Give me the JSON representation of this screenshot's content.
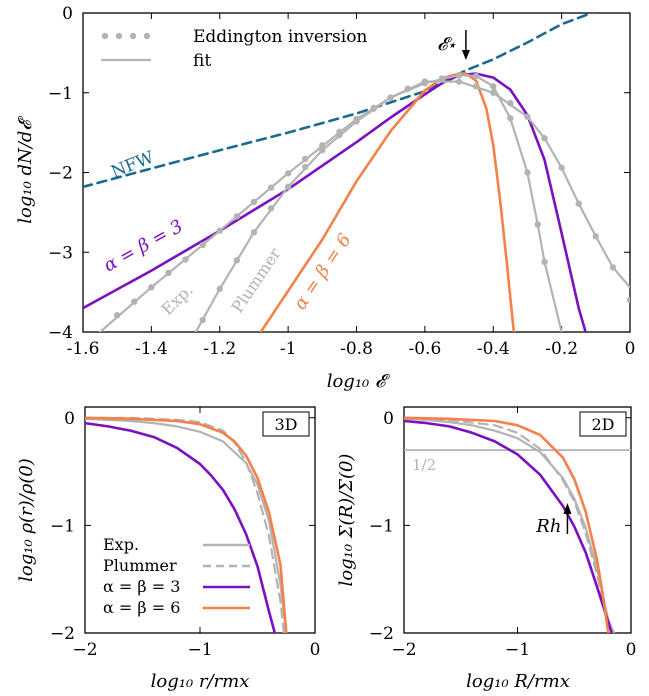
{
  "chart_data": [
    {
      "type": "line",
      "xlabel": "log₁₀ 𝓔",
      "ylabel": "log₁₀ dN/d𝓔",
      "xlim": [
        -1.6,
        0
      ],
      "ylim": [
        -4,
        0
      ],
      "xticks": [
        "-1.6",
        "-1.4",
        "-1.2",
        "-1",
        "-0.8",
        "-0.6",
        "-0.4",
        "-0.2",
        "0"
      ],
      "yticks": [
        "0",
        "−1",
        "−2",
        "−3",
        "−4"
      ],
      "legend": {
        "position": "top-left",
        "entries": [
          "Eddington inversion",
          "fit"
        ]
      },
      "colors": {
        "nfw": "#1a6b8f",
        "ab3": "#7a10c0",
        "ab6": "#f4814a",
        "gray": "#b3b3b3"
      },
      "annotations": {
        "nfw": "NFW",
        "ab3": "α = β = 3",
        "ab6": "α = β = 6",
        "exp": "Exp.",
        "plummer": "Plummer",
        "estar": "𝓔⋆"
      },
      "estar_x": -0.48,
      "series": [
        {
          "name": "NFW",
          "style": "dashed",
          "color": "#1a6b8f",
          "x": [
            -1.6,
            -1.4,
            -1.2,
            -1.0,
            -0.8,
            -0.6,
            -0.48,
            -0.4,
            -0.3,
            -0.2,
            -0.1
          ],
          "y": [
            -2.18,
            -1.95,
            -1.72,
            -1.5,
            -1.26,
            -0.98,
            -0.72,
            -0.58,
            -0.37,
            -0.14,
            0.02
          ]
        },
        {
          "name": "α = β = 3",
          "color": "#7a10c0",
          "x": [
            -1.6,
            -1.4,
            -1.2,
            -1.0,
            -0.8,
            -0.7,
            -0.6,
            -0.55,
            -0.5,
            -0.45,
            -0.4,
            -0.35,
            -0.3,
            -0.25,
            -0.2,
            -0.15,
            -0.13
          ],
          "y": [
            -3.7,
            -3.23,
            -2.73,
            -2.21,
            -1.62,
            -1.31,
            -1.02,
            -0.88,
            -0.78,
            -0.76,
            -0.81,
            -0.96,
            -1.28,
            -1.84,
            -2.76,
            -3.7,
            -4.0
          ]
        },
        {
          "name": "α = β = 6",
          "color": "#f4814a",
          "x": [
            -1.08,
            -0.9,
            -0.8,
            -0.7,
            -0.6,
            -0.55,
            -0.5,
            -0.48,
            -0.45,
            -0.42,
            -0.4,
            -0.38,
            -0.36,
            -0.34
          ],
          "y": [
            -4.0,
            -2.84,
            -2.11,
            -1.48,
            -0.97,
            -0.82,
            -0.76,
            -0.76,
            -0.85,
            -1.2,
            -1.66,
            -2.35,
            -3.14,
            -4.0
          ]
        },
        {
          "name": "Exp. fit",
          "color": "#b3b3b3",
          "x": [
            -1.55,
            -1.4,
            -1.2,
            -1.0,
            -0.8,
            -0.7,
            -0.6,
            -0.5,
            -0.4,
            -0.3,
            -0.25,
            -0.2,
            -0.15,
            -0.1,
            -0.05,
            0.0
          ],
          "y": [
            -4.0,
            -3.44,
            -2.73,
            -2.01,
            -1.33,
            -1.06,
            -0.86,
            -0.86,
            -1.0,
            -1.3,
            -1.57,
            -1.94,
            -2.39,
            -2.8,
            -3.19,
            -3.44
          ]
        },
        {
          "name": "Plummer fit",
          "color": "#b3b3b3",
          "x": [
            -1.27,
            -1.2,
            -1.1,
            -1.0,
            -0.9,
            -0.8,
            -0.7,
            -0.6,
            -0.5,
            -0.45,
            -0.4,
            -0.35,
            -0.3,
            -0.27,
            -0.25,
            -0.2
          ],
          "y": [
            -4.0,
            -3.46,
            -2.75,
            -2.18,
            -1.72,
            -1.36,
            -1.06,
            -0.88,
            -0.78,
            -0.79,
            -0.92,
            -1.32,
            -2.0,
            -2.65,
            -3.12,
            -4.0
          ]
        },
        {
          "name": "Eddington inversion (Exp.)",
          "style": "dots",
          "color": "#b3b3b3",
          "x": [
            -1.5,
            -1.45,
            -1.4,
            -1.35,
            -1.3,
            -1.25,
            -1.2,
            -1.15,
            -1.1,
            -1.05,
            -1.0,
            -0.95,
            -0.9,
            -0.85,
            -0.8,
            -0.75,
            -0.7,
            -0.65,
            -0.6,
            -0.55,
            -0.5,
            -0.45,
            -0.4,
            -0.35,
            -0.3,
            -0.25,
            -0.2,
            -0.15,
            -0.1,
            -0.05,
            0.0
          ],
          "y": [
            -3.79,
            -3.62,
            -3.44,
            -3.26,
            -3.09,
            -2.91,
            -2.73,
            -2.55,
            -2.37,
            -2.19,
            -2.01,
            -1.83,
            -1.66,
            -1.49,
            -1.33,
            -1.19,
            -1.06,
            -0.95,
            -0.86,
            -0.83,
            -0.86,
            -0.92,
            -1.0,
            -1.13,
            -1.3,
            -1.57,
            -1.94,
            -2.39,
            -2.8,
            -3.19,
            -3.6
          ]
        },
        {
          "name": "Eddington inversion (Plummer)",
          "style": "dots",
          "color": "#b3b3b3",
          "x": [
            -1.25,
            -1.2,
            -1.15,
            -1.1,
            -1.05,
            -1.0,
            -0.95,
            -0.9,
            -0.85,
            -0.8,
            -0.75,
            -0.7,
            -0.65,
            -0.6,
            -0.55,
            -0.5,
            -0.45,
            -0.4,
            -0.35,
            -0.3,
            -0.27,
            -0.25
          ],
          "y": [
            -3.85,
            -3.46,
            -3.1,
            -2.75,
            -2.45,
            -2.18,
            -1.93,
            -1.72,
            -1.53,
            -1.36,
            -1.2,
            -1.06,
            -0.95,
            -0.88,
            -0.82,
            -0.78,
            -0.79,
            -0.92,
            -1.32,
            -2.0,
            -2.65,
            -3.12
          ]
        }
      ]
    },
    {
      "type": "line",
      "xlabel": "log₁₀ r/rmx",
      "ylabel": "log₁₀ ρ(r)/ρ(0)",
      "xlim": [
        -2,
        0
      ],
      "ylim": [
        -2,
        0.1
      ],
      "xticks": [
        "−2",
        "−1",
        "0"
      ],
      "yticks": [
        "0",
        "−1",
        "−2"
      ],
      "tag": "3D",
      "legend": {
        "position": "bottom-left",
        "entries": [
          "Exp.",
          "Plummer",
          "α = β = 3",
          "α = β = 6"
        ]
      },
      "series": [
        {
          "name": "Exp.",
          "color": "#b3b3b3",
          "x": [
            -2.0,
            -1.8,
            -1.6,
            -1.4,
            -1.2,
            -1.0,
            -0.8,
            -0.6,
            -0.5,
            -0.4,
            -0.3,
            -0.25
          ],
          "y": [
            -0.01,
            -0.02,
            -0.03,
            -0.05,
            -0.08,
            -0.13,
            -0.22,
            -0.42,
            -0.62,
            -0.96,
            -1.55,
            -2.0
          ]
        },
        {
          "name": "Plummer",
          "style": "dashed",
          "color": "#b3b3b3",
          "x": [
            -2.0,
            -1.6,
            -1.4,
            -1.2,
            -1.0,
            -0.8,
            -0.7,
            -0.6,
            -0.5,
            -0.4,
            -0.3,
            -0.27
          ],
          "y": [
            0.0,
            0.0,
            -0.01,
            -0.02,
            -0.04,
            -0.12,
            -0.23,
            -0.41,
            -0.7,
            -1.1,
            -1.71,
            -2.0
          ]
        },
        {
          "name": "α = β = 3",
          "color": "#7a10c0",
          "x": [
            -2.0,
            -1.8,
            -1.6,
            -1.4,
            -1.2,
            -1.0,
            -0.9,
            -0.8,
            -0.7,
            -0.6,
            -0.5,
            -0.4,
            -0.35
          ],
          "y": [
            -0.05,
            -0.08,
            -0.12,
            -0.18,
            -0.28,
            -0.43,
            -0.54,
            -0.67,
            -0.85,
            -1.08,
            -1.38,
            -1.8,
            -2.0
          ]
        },
        {
          "name": "α = β = 6",
          "color": "#f4814a",
          "x": [
            -2.0,
            -1.6,
            -1.2,
            -1.0,
            -0.8,
            -0.7,
            -0.6,
            -0.5,
            -0.4,
            -0.3,
            -0.25
          ],
          "y": [
            0.0,
            -0.01,
            -0.03,
            -0.06,
            -0.14,
            -0.22,
            -0.35,
            -0.56,
            -0.88,
            -1.37,
            -2.0
          ]
        }
      ]
    },
    {
      "type": "line",
      "xlabel": "log₁₀ R/rmx",
      "ylabel": "log₁₀ Σ(R)/Σ(0)",
      "xlim": [
        -2,
        0
      ],
      "ylim": [
        -2,
        0.1
      ],
      "xticks": [
        "−2",
        "−1",
        "0"
      ],
      "yticks": [
        "0",
        "−1",
        "−2"
      ],
      "tag": "2D",
      "half_label": "1/2",
      "half_value": -0.301,
      "rh_label": "Rh",
      "rh_x": -0.56,
      "series": [
        {
          "name": "Exp.",
          "color": "#b3b3b3",
          "x": [
            -2.0,
            -1.8,
            -1.6,
            -1.4,
            -1.2,
            -1.0,
            -0.8,
            -0.6,
            -0.5,
            -0.4,
            -0.3,
            -0.2,
            -0.15
          ],
          "y": [
            -0.01,
            -0.02,
            -0.04,
            -0.07,
            -0.12,
            -0.19,
            -0.32,
            -0.56,
            -0.75,
            -1.02,
            -1.4,
            -1.88,
            -2.0
          ]
        },
        {
          "name": "Plummer",
          "style": "dashed",
          "color": "#b3b3b3",
          "x": [
            -2.0,
            -1.6,
            -1.2,
            -1.0,
            -0.8,
            -0.6,
            -0.5,
            -0.4,
            -0.3,
            -0.2,
            -0.17
          ],
          "y": [
            0.0,
            -0.02,
            -0.07,
            -0.14,
            -0.29,
            -0.58,
            -0.78,
            -1.07,
            -1.46,
            -1.9,
            -2.0
          ]
        },
        {
          "name": "α = β = 3",
          "color": "#7a10c0",
          "x": [
            -2.0,
            -1.8,
            -1.6,
            -1.4,
            -1.2,
            -1.0,
            -0.8,
            -0.6,
            -0.5,
            -0.4,
            -0.3,
            -0.2,
            -0.17
          ],
          "y": [
            -0.03,
            -0.05,
            -0.08,
            -0.14,
            -0.22,
            -0.34,
            -0.53,
            -0.82,
            -1.01,
            -1.25,
            -1.57,
            -1.9,
            -2.0
          ]
        },
        {
          "name": "α = β = 6",
          "color": "#f4814a",
          "x": [
            -2.0,
            -1.6,
            -1.2,
            -1.0,
            -0.8,
            -0.6,
            -0.5,
            -0.4,
            -0.3,
            -0.25,
            -0.2
          ],
          "y": [
            0.0,
            -0.01,
            -0.03,
            -0.07,
            -0.16,
            -0.37,
            -0.57,
            -0.87,
            -1.32,
            -1.63,
            -2.0
          ]
        }
      ]
    }
  ]
}
